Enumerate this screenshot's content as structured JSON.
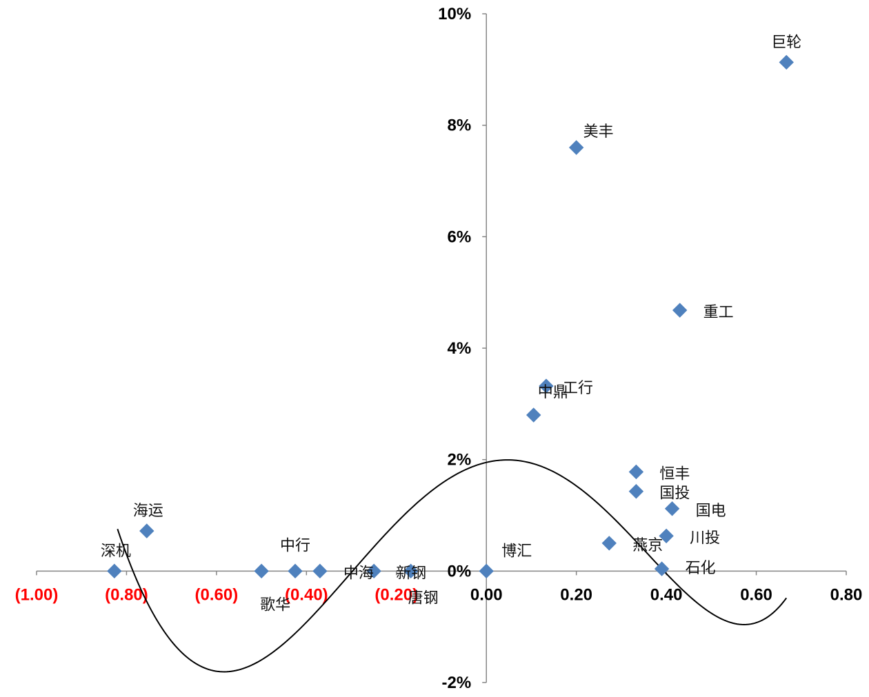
{
  "chart_data": {
    "type": "scatter",
    "title": "",
    "xlabel": "",
    "ylabel": "",
    "xlim": [
      -1.0,
      0.8
    ],
    "ylim": [
      -0.02,
      0.1
    ],
    "grid": false,
    "legend": "none",
    "x_ticks": [
      {
        "value": -1.0,
        "label": "(1.00)"
      },
      {
        "value": -0.8,
        "label": "(0.80)"
      },
      {
        "value": -0.6,
        "label": "(0.60)"
      },
      {
        "value": -0.4,
        "label": "(0.40)"
      },
      {
        "value": -0.2,
        "label": "(0.20)"
      },
      {
        "value": 0.0,
        "label": "0.00"
      },
      {
        "value": 0.2,
        "label": "0.20"
      },
      {
        "value": 0.4,
        "label": "0.40"
      },
      {
        "value": 0.6,
        "label": "0.60"
      },
      {
        "value": 0.8,
        "label": "0.80"
      }
    ],
    "y_ticks": [
      {
        "value": -0.02,
        "label": "-2%"
      },
      {
        "value": 0.0,
        "label": "0%"
      },
      {
        "value": 0.02,
        "label": "2%"
      },
      {
        "value": 0.04,
        "label": "4%"
      },
      {
        "value": 0.06,
        "label": "6%"
      },
      {
        "value": 0.08,
        "label": "8%"
      },
      {
        "value": 0.1,
        "label": "10%"
      }
    ],
    "negative_tick_color": "#ff0000",
    "positive_tick_color": "#000000",
    "marker_color": "#4f81bd",
    "curve_color": "#000000",
    "points": [
      {
        "label": "巨轮",
        "x": 0.667,
        "y": 0.0913
      },
      {
        "label": "美丰",
        "x": 0.2,
        "y": 0.076
      },
      {
        "label": "重工",
        "x": 0.43,
        "y": 0.0468
      },
      {
        "label": "中鼎",
        "x": 0.105,
        "y": 0.028
      },
      {
        "label": "工行",
        "x": 0.133,
        "y": 0.0332
      },
      {
        "label": "恒丰",
        "x": 0.333,
        "y": 0.0178
      },
      {
        "label": "国投",
        "x": 0.333,
        "y": 0.0143
      },
      {
        "label": "国电",
        "x": 0.413,
        "y": 0.0112
      },
      {
        "label": "川投",
        "x": 0.4,
        "y": 0.0063
      },
      {
        "label": "燕京",
        "x": 0.273,
        "y": 0.005
      },
      {
        "label": "石化",
        "x": 0.39,
        "y": 0.0004
      },
      {
        "label": "博汇",
        "x": 0.0,
        "y": 0.0
      },
      {
        "label": "海运",
        "x": -0.755,
        "y": 0.0072
      },
      {
        "label": "深机",
        "x": -0.827,
        "y": 0.0
      },
      {
        "label": "歌华",
        "x": -0.5,
        "y": 0.0
      },
      {
        "label": "中行",
        "x": -0.425,
        "y": 0.0
      },
      {
        "label": "中海",
        "x": -0.37,
        "y": 0.0
      },
      {
        "label": "新钢",
        "x": -0.25,
        "y": 0.0
      },
      {
        "label": "唐钢",
        "x": -0.168,
        "y": 0.0
      }
    ],
    "trendline": {
      "type": "polynomial",
      "x_range": [
        -0.82,
        0.667
      ],
      "coefficients": [
        0.0195,
        0.019,
        -0.2,
        -0.065,
        0.3,
        0.09
      ]
    }
  }
}
